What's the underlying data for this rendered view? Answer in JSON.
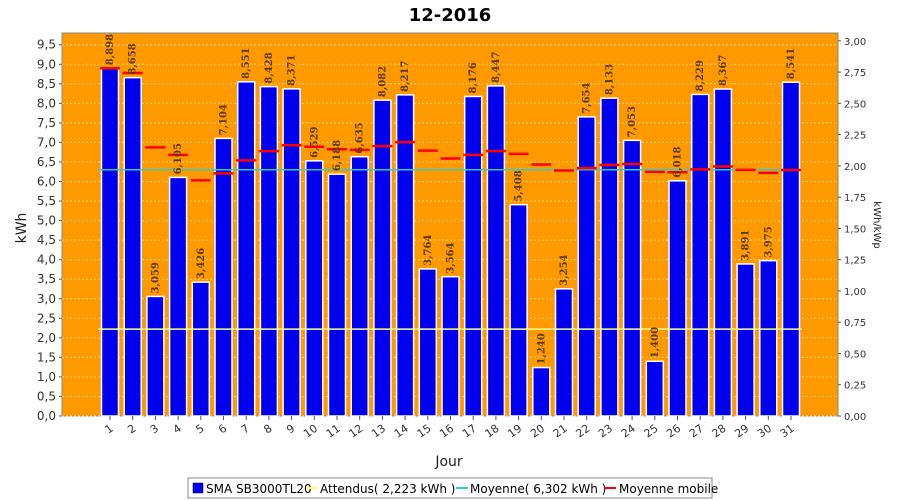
{
  "chart_data": {
    "type": "bar",
    "title": "12-2016",
    "xlabel": "Jour",
    "ylabel": "kWh",
    "y2label": "kWh/kWp",
    "ylim": [
      0,
      9.8
    ],
    "y2lim": [
      0,
      3.0625
    ],
    "yticks": [
      "0,0",
      "0,5",
      "1,0",
      "1,5",
      "2,0",
      "2,5",
      "3,0",
      "3,5",
      "4,0",
      "4,5",
      "5,0",
      "5,5",
      "6,0",
      "6,5",
      "7,0",
      "7,5",
      "8,0",
      "8,5",
      "9,0",
      "9,5"
    ],
    "y2ticks": [
      "0,00",
      "0,25",
      "0,50",
      "0,75",
      "1,00",
      "1,25",
      "1,50",
      "1,75",
      "2,00",
      "2,25",
      "2,50",
      "2,75",
      "3,00"
    ],
    "categories": [
      "1",
      "2",
      "3",
      "4",
      "5",
      "6",
      "7",
      "8",
      "9",
      "10",
      "11",
      "12",
      "13",
      "14",
      "15",
      "16",
      "17",
      "18",
      "19",
      "20",
      "21",
      "22",
      "23",
      "24",
      "25",
      "26",
      "27",
      "28",
      "29",
      "30",
      "31"
    ],
    "series": [
      {
        "name": "SMA SB3000TL20",
        "kind": "bar",
        "color": "#0000ee",
        "values": [
          8.898,
          8.658,
          3.059,
          6.105,
          3.426,
          7.104,
          8.551,
          8.428,
          8.371,
          6.529,
          6.188,
          6.635,
          8.082,
          8.217,
          3.764,
          3.564,
          8.176,
          8.447,
          5.408,
          1.24,
          3.254,
          7.654,
          8.133,
          7.053,
          1.4,
          6.018,
          8.229,
          8.367,
          3.891,
          3.975,
          8.541
        ],
        "labels": [
          "8,898",
          "8,658",
          "3,059",
          "6,105",
          "3,426",
          "7,104",
          "8,551",
          "8,428",
          "8,371",
          "6,529",
          "6,188",
          "6,635",
          "8,082",
          "8,217",
          "3,764",
          "3,564",
          "8,176",
          "8,447",
          "5,408",
          "1,240",
          "3,254",
          "7,654",
          "8,133",
          "7,053",
          "1,400",
          "6,018",
          "8,229",
          "8,367",
          "3,891",
          "3,975",
          "8,541"
        ]
      },
      {
        "name": "Attendus( 2,223 kWh )",
        "kind": "hline",
        "color": "#ffff99",
        "value": 2.223
      },
      {
        "name": "Moyenne( 6,302 kWh )",
        "kind": "hline",
        "color": "#33cccc",
        "value": 6.302
      },
      {
        "name": "Moyenne mobile",
        "kind": "dash",
        "color": "#ff0000",
        "values": [
          8.898,
          8.778,
          6.872,
          6.68,
          6.029,
          6.208,
          6.542,
          6.778,
          6.928,
          6.888,
          6.824,
          6.808,
          6.906,
          7.007,
          6.79,
          6.589,
          6.682,
          6.779,
          6.707,
          6.434,
          6.282,
          6.344,
          6.421,
          6.447,
          6.245,
          6.237,
          6.31,
          6.383,
          6.297,
          6.22,
          6.295
        ]
      }
    ],
    "grid": true,
    "legend_position": "bottom"
  },
  "colors": {
    "plot_bg": "#ff9900",
    "bar": "#0000ee",
    "bar_outline": "#ffffff",
    "grid": "#ffd27a"
  }
}
